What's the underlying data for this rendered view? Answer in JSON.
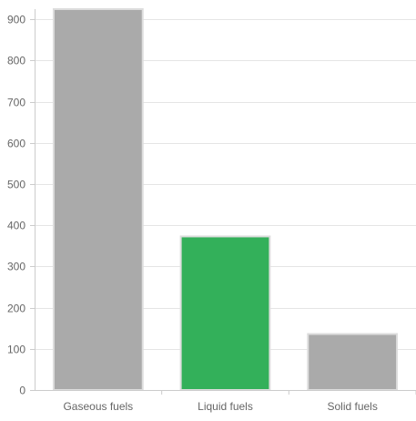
{
  "chart_data": {
    "type": "bar",
    "categories": [
      "Gaseous fuels",
      "Liquid fuels",
      "Solid fuels"
    ],
    "values": [
      925,
      373,
      136
    ],
    "bar_colors": [
      "#aaaaaa",
      "#33b05a",
      "#aaaaaa"
    ],
    "bar_border_color": "#dddddd",
    "ylim": [
      0,
      925
    ],
    "yticks": [
      0,
      100,
      200,
      300,
      400,
      500,
      600,
      700,
      800,
      900
    ],
    "title": "",
    "xlabel": "",
    "ylabel": "",
    "grid": true,
    "grid_color": "#e5e5e5",
    "axis_color": "#cccccc",
    "tick_label_color": "#666666"
  }
}
